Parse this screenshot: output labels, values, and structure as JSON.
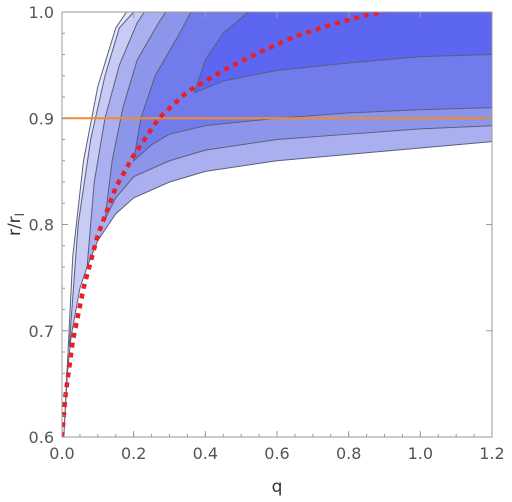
{
  "chart_data": {
    "type": "contour",
    "xlabel": "q",
    "ylabel_main": "r/r",
    "ylabel_sub": "l",
    "xlim": [
      0,
      1.2
    ],
    "ylim": [
      0.6,
      1.0
    ],
    "x_ticks": [
      0.0,
      0.2,
      0.4,
      0.6,
      0.8,
      1.0,
      1.2
    ],
    "x_tick_labels": [
      "0.0",
      "0.2",
      "0.4",
      "0.6",
      "0.8",
      "1.0",
      "1.2"
    ],
    "y_ticks": [
      0.6,
      0.7,
      0.8,
      0.9,
      1.0
    ],
    "y_tick_labels": [
      "0.6",
      "0.7",
      "0.8",
      "0.9",
      "1.0"
    ],
    "contour_levels": [
      {
        "level": 1,
        "color": "#e4e6fb",
        "boundary": [
          [
            0.005,
            0.6
          ],
          [
            0.015,
            0.66
          ],
          [
            0.03,
            0.71
          ],
          [
            0.06,
            0.76
          ],
          [
            0.1,
            0.8
          ],
          [
            0.15,
            0.84
          ],
          [
            0.2,
            0.865
          ],
          [
            0.3,
            0.885
          ],
          [
            0.4,
            0.895
          ],
          [
            0.6,
            0.905
          ],
          [
            0.8,
            0.91
          ],
          [
            1.0,
            0.91
          ],
          [
            1.2,
            0.913
          ]
        ],
        "upper": [
          [
            0.005,
            0.6
          ],
          [
            0.03,
            0.77
          ],
          [
            0.06,
            0.86
          ],
          [
            0.1,
            0.93
          ],
          [
            0.15,
            0.985
          ],
          [
            0.18,
            1.0
          ]
        ]
      },
      {
        "level": 2,
        "color": "#c8ccf5",
        "boundary": [
          [
            0.02,
            0.685
          ],
          [
            0.05,
            0.74
          ],
          [
            0.1,
            0.79
          ],
          [
            0.15,
            0.82
          ],
          [
            0.2,
            0.84
          ],
          [
            0.3,
            0.855
          ],
          [
            0.4,
            0.862
          ],
          [
            0.6,
            0.872
          ],
          [
            0.8,
            0.877
          ],
          [
            1.0,
            0.88
          ],
          [
            1.2,
            0.883
          ]
        ],
        "upper": [
          [
            0.02,
            0.685
          ],
          [
            0.045,
            0.8
          ],
          [
            0.08,
            0.88
          ],
          [
            0.12,
            0.94
          ],
          [
            0.16,
            0.985
          ],
          [
            0.2,
            1.0
          ]
        ]
      },
      {
        "level": 3,
        "color": "#aab0ef",
        "boundary": [
          [
            0.07,
            0.76
          ],
          [
            0.1,
            0.785
          ],
          [
            0.15,
            0.81
          ],
          [
            0.2,
            0.825
          ],
          [
            0.3,
            0.84
          ],
          [
            0.4,
            0.85
          ],
          [
            0.6,
            0.86
          ],
          [
            0.8,
            0.866
          ],
          [
            1.0,
            0.872
          ],
          [
            1.2,
            0.878
          ]
        ],
        "upper": [
          [
            0.07,
            0.76
          ],
          [
            0.09,
            0.84
          ],
          [
            0.12,
            0.9
          ],
          [
            0.16,
            0.95
          ],
          [
            0.21,
            0.99
          ],
          [
            0.23,
            1.0
          ]
        ]
      },
      {
        "level": 4,
        "color": "#8d95ea",
        "boundary": [
          [
            0.12,
            0.805
          ],
          [
            0.15,
            0.825
          ],
          [
            0.2,
            0.845
          ],
          [
            0.3,
            0.86
          ],
          [
            0.4,
            0.87
          ],
          [
            0.6,
            0.88
          ],
          [
            0.8,
            0.885
          ],
          [
            1.0,
            0.89
          ],
          [
            1.2,
            0.893
          ]
        ],
        "upper": [
          [
            0.12,
            0.805
          ],
          [
            0.14,
            0.86
          ],
          [
            0.17,
            0.91
          ],
          [
            0.21,
            0.955
          ],
          [
            0.27,
            0.99
          ],
          [
            0.29,
            1.0
          ]
        ]
      },
      {
        "level": 5,
        "color": "#717bec",
        "boundary": [
          [
            0.2,
            0.86
          ],
          [
            0.25,
            0.875
          ],
          [
            0.3,
            0.885
          ],
          [
            0.4,
            0.893
          ],
          [
            0.6,
            0.9
          ],
          [
            0.8,
            0.905
          ],
          [
            1.0,
            0.908
          ],
          [
            1.2,
            0.91
          ]
        ],
        "upper": [
          [
            0.2,
            0.86
          ],
          [
            0.22,
            0.9
          ],
          [
            0.26,
            0.94
          ],
          [
            0.32,
            0.975
          ],
          [
            0.36,
            1.0
          ]
        ]
      },
      {
        "level": 6,
        "color": "#5c66f0",
        "boundary": [
          [
            0.37,
            0.924
          ],
          [
            0.45,
            0.935
          ],
          [
            0.6,
            0.945
          ],
          [
            0.8,
            0.952
          ],
          [
            1.0,
            0.958
          ],
          [
            1.2,
            0.96
          ]
        ],
        "upper": [
          [
            0.37,
            0.924
          ],
          [
            0.4,
            0.955
          ],
          [
            0.45,
            0.98
          ],
          [
            0.52,
            1.0
          ]
        ]
      }
    ],
    "reference_lines": [
      {
        "type": "hline",
        "y": 0.9,
        "color": "#f28c28",
        "style": "solid"
      },
      {
        "type": "curve",
        "color": "#e8202a",
        "style": "dotted",
        "points": [
          [
            0.0,
            0.6
          ],
          [
            0.01,
            0.64
          ],
          [
            0.03,
            0.69
          ],
          [
            0.06,
            0.74
          ],
          [
            0.1,
            0.79
          ],
          [
            0.15,
            0.835
          ],
          [
            0.2,
            0.865
          ],
          [
            0.27,
            0.9
          ],
          [
            0.35,
            0.925
          ],
          [
            0.45,
            0.945
          ],
          [
            0.55,
            0.962
          ],
          [
            0.65,
            0.977
          ],
          [
            0.75,
            0.988
          ],
          [
            0.85,
            0.997
          ],
          [
            0.9,
            1.0
          ]
        ]
      }
    ],
    "grid": false,
    "frame": true
  }
}
